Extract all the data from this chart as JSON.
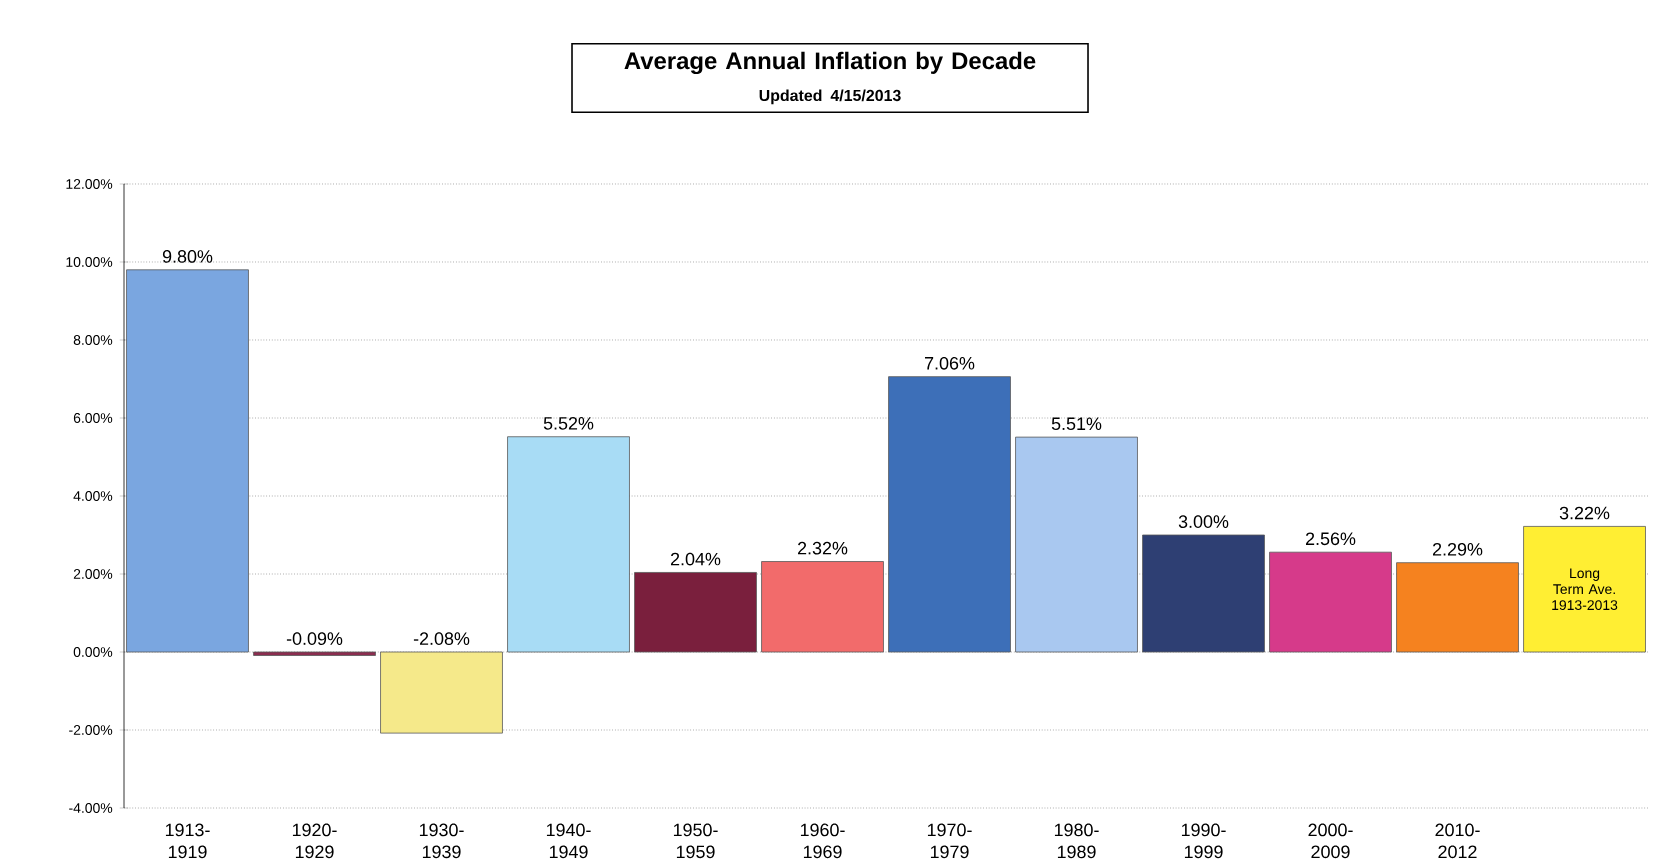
{
  "chart_data": {
    "type": "bar",
    "title": "Average Annual Inflation by Decade",
    "subtitle": "Updated 4/15/2013",
    "categories": [
      "1913-1919",
      "1920-1929",
      "1930-1939",
      "1940-1949",
      "1950-1959",
      "1960-1969",
      "1970-1979",
      "1980-1989",
      "1990-1999",
      "2000-2009",
      "2010-2012",
      null
    ],
    "values": [
      9.8,
      -0.09,
      -2.08,
      5.52,
      2.04,
      2.32,
      7.06,
      5.51,
      3.0,
      2.56,
      2.29,
      3.22
    ],
    "value_labels": [
      "9.80%",
      "-0.09%",
      "-2.08%",
      "5.52%",
      "2.04%",
      "2.32%",
      "7.06%",
      "5.51%",
      "3.00%",
      "2.56%",
      "2.29%",
      "3.22%"
    ],
    "colors": [
      "#7aa6e0",
      "#8b2d4f",
      "#f5e98a",
      "#a8dcf5",
      "#7a1f3d",
      "#f26b6b",
      "#3d6fb8",
      "#a9c8f0",
      "#2e3f73",
      "#d63a8a",
      "#f5821f",
      "#ffee33"
    ],
    "annotations": [
      "Long Term Ave. 1913-2013"
    ],
    "ylim": [
      -4,
      12
    ],
    "yticks": [
      {
        "value": -4,
        "label": "-4.00%"
      },
      {
        "value": -2,
        "label": "-2.00%"
      },
      {
        "value": 0,
        "label": "0.00%"
      },
      {
        "value": 2,
        "label": "2.00%"
      },
      {
        "value": 4,
        "label": "4.00%"
      },
      {
        "value": 6,
        "label": "6.00%"
      },
      {
        "value": 8,
        "label": "8.00%"
      },
      {
        "value": 10,
        "label": "10.00%"
      },
      {
        "value": 12,
        "label": "12.00%"
      }
    ],
    "grid": "y"
  }
}
